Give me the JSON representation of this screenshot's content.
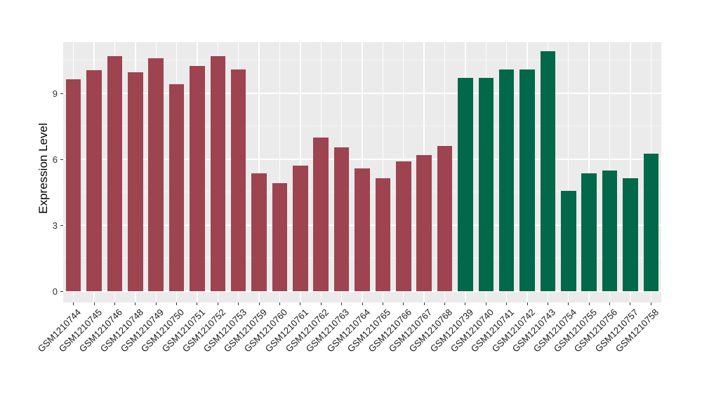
{
  "figure": {
    "background": "#FFFFFF",
    "panel_background": "#EBEBEB",
    "grid_major_color": "#FFFFFF",
    "grid_minor_color": "#F4F4F4",
    "axis_text_color": "#303030",
    "tick_mark_color": "#333333"
  },
  "chart_data": {
    "type": "bar",
    "title": "",
    "xlabel": "",
    "ylabel": "Expression Level",
    "ylim": [
      0,
      11.33
    ],
    "yticks": [
      0,
      3,
      6,
      9
    ],
    "yticks_minor": [
      1.5,
      4.5,
      7.5,
      10.5
    ],
    "grid": "on",
    "legend": "none",
    "categories": [
      "GSM1210744",
      "GSM1210745",
      "GSM1210746",
      "GSM1210748",
      "GSM1210749",
      "GSM1210750",
      "GSM1210751",
      "GSM1210752",
      "GSM1210753",
      "GSM1210759",
      "GSM1210760",
      "GSM1210761",
      "GSM1210762",
      "GSM1210763",
      "GSM1210764",
      "GSM1210765",
      "GSM1210766",
      "GSM1210767",
      "GSM1210768",
      "GSM1210739",
      "GSM1210740",
      "GSM1210741",
      "GSM1210742",
      "GSM1210743",
      "GSM1210754",
      "GSM1210755",
      "GSM1210756",
      "GSM1210757",
      "GSM1210758"
    ],
    "values": [
      9.65,
      10.05,
      10.7,
      9.95,
      10.6,
      9.4,
      10.25,
      10.7,
      10.1,
      5.35,
      4.9,
      5.7,
      7.0,
      6.55,
      5.6,
      5.15,
      5.9,
      6.2,
      6.6,
      9.7,
      9.7,
      10.1,
      10.1,
      10.9,
      4.55,
      5.35,
      5.5,
      5.15,
      6.25
    ],
    "groups": [
      "A",
      "A",
      "A",
      "A",
      "A",
      "A",
      "A",
      "A",
      "A",
      "A",
      "A",
      "A",
      "A",
      "A",
      "A",
      "A",
      "A",
      "A",
      "A",
      "B",
      "B",
      "B",
      "B",
      "B",
      "B",
      "B",
      "B",
      "B",
      "B"
    ],
    "group_colors": {
      "A": "#9D4450",
      "B": "#016849"
    }
  }
}
